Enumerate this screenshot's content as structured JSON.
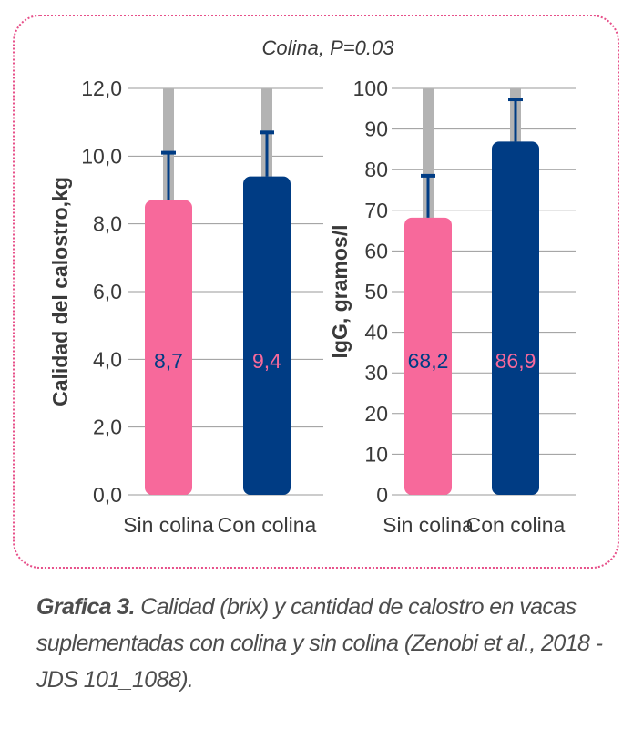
{
  "chart_data": [
    {
      "type": "bar",
      "title": "Colina, P=0.03",
      "ylabel": "Calidad del calostro,kg",
      "categories": [
        "Sin colina",
        "Con colina"
      ],
      "values": [
        8.7,
        9.4
      ],
      "value_labels": [
        "8,7",
        "9,4"
      ],
      "error_upper": [
        10.1,
        10.7
      ],
      "ylim": [
        0,
        12
      ],
      "yticks": [
        "0,0",
        "2,0",
        "4,0",
        "6,0",
        "8,0",
        "10,0",
        "12,0"
      ],
      "grid": true,
      "colors": [
        "#f7699b",
        "#003c84"
      ],
      "label_colors": [
        "#003c84",
        "#f7699b"
      ]
    },
    {
      "type": "bar",
      "ylabel": "IgG, gramos/l",
      "categories": [
        "Sin colina",
        "Con colina"
      ],
      "values": [
        68.2,
        86.9
      ],
      "value_labels": [
        "68,2",
        "86,9"
      ],
      "error_upper": [
        78.5,
        97.3
      ],
      "ylim": [
        0,
        100
      ],
      "yticks": [
        "0",
        "10",
        "20",
        "30",
        "40",
        "50",
        "60",
        "70",
        "80",
        "90",
        "100"
      ],
      "grid": true,
      "colors": [
        "#f7699b",
        "#003c84"
      ],
      "label_colors": [
        "#003c84",
        "#f7699b"
      ]
    }
  ],
  "caption": {
    "lead": "Grafica 3.",
    "text": " Calidad (brix) y cantidad de calostro en vacas suplementadas con colina y sin colina (Zenobi et al., 2018 - JDS 101_1088)."
  }
}
